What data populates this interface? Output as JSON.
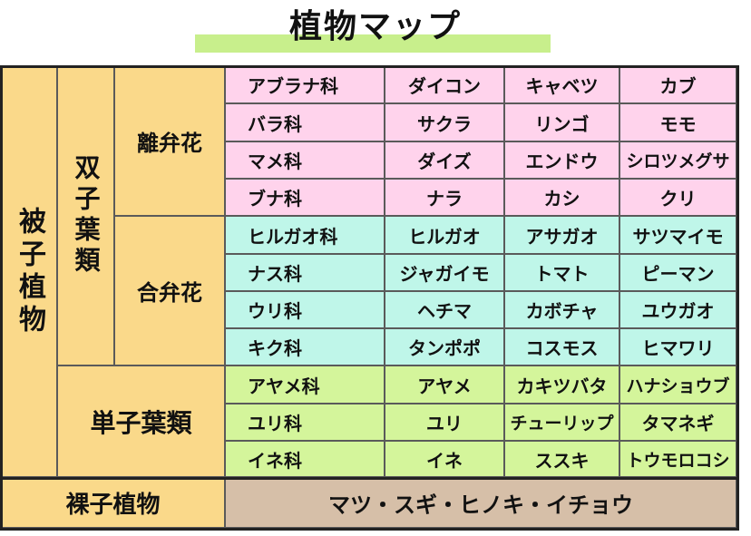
{
  "title": "植物マップ",
  "categories": {
    "angiosperms": "被子植物",
    "dicots": "双子葉類",
    "polypetalae": "離弁花",
    "sympetalae": "合弁花",
    "monocots": "単子葉類",
    "gymnosperms": "裸子植物"
  },
  "rows": [
    {
      "family": "アブラナ科",
      "examples": [
        "ダイコン",
        "キャベツ",
        "カブ"
      ]
    },
    {
      "family": "バラ科",
      "examples": [
        "サクラ",
        "リンゴ",
        "モモ"
      ]
    },
    {
      "family": "マメ科",
      "examples": [
        "ダイズ",
        "エンドウ",
        "シロツメグサ"
      ]
    },
    {
      "family": "ブナ科",
      "examples": [
        "ナラ",
        "カシ",
        "クリ"
      ]
    },
    {
      "family": "ヒルガオ科",
      "examples": [
        "ヒルガオ",
        "アサガオ",
        "サツマイモ"
      ]
    },
    {
      "family": "ナス科",
      "examples": [
        "ジャガイモ",
        "トマト",
        "ピーマン"
      ]
    },
    {
      "family": "ウリ科",
      "examples": [
        "ヘチマ",
        "カボチャ",
        "ユウガオ"
      ]
    },
    {
      "family": "キク科",
      "examples": [
        "タンポポ",
        "コスモス",
        "ヒマワリ"
      ]
    },
    {
      "family": "アヤメ科",
      "examples": [
        "アヤメ",
        "カキツバタ",
        "ハナショウブ"
      ]
    },
    {
      "family": "ユリ科",
      "examples": [
        "ユリ",
        "チューリップ",
        "タマネギ"
      ]
    },
    {
      "family": "イネ科",
      "examples": [
        "イネ",
        "ススキ",
        "トウモロコシ"
      ]
    }
  ],
  "gymnosperm_examples": "マツ・スギ・ヒノキ・イチョウ",
  "colors": {
    "tan": "#fad98a",
    "pink": "#ffd3ec",
    "cyan": "#bff6e9",
    "green": "#d4f59b",
    "brown": "#d6bfa8",
    "title_highlight": "#c8ef8c"
  }
}
